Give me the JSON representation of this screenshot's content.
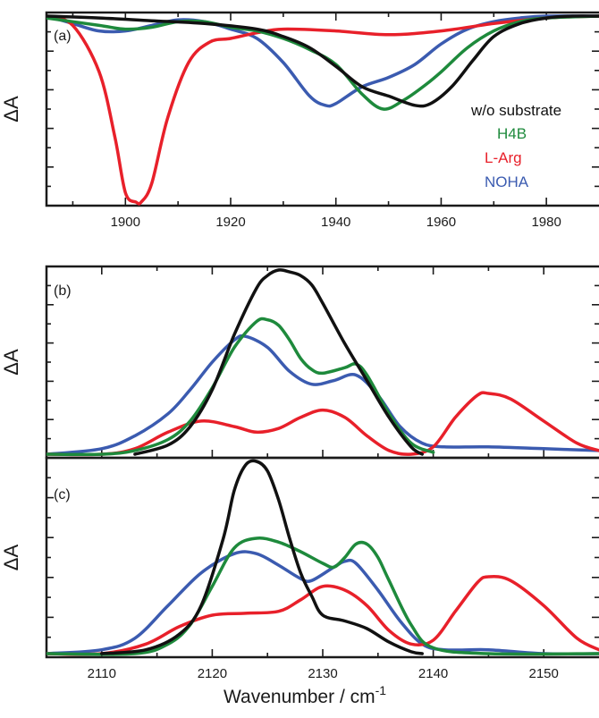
{
  "xlabel": "Wavenumber / cm",
  "xlabel_sup": "-1",
  "legend": [
    {
      "text": "w/o substrate",
      "color": "#111111"
    },
    {
      "text": "H4B",
      "color": "#1e8a3c"
    },
    {
      "text": "L-Arg",
      "color": "#e8202a"
    },
    {
      "text": "NOHA",
      "color": "#3b5bb0"
    }
  ],
  "chart_data": [
    {
      "type": "line",
      "panel": "(a)",
      "ylabel": "ΔA",
      "xlim": [
        1885,
        1990
      ],
      "ylim": [
        -1.0,
        0.0
      ],
      "xticks": [
        1900,
        1920,
        1940,
        1960,
        1980
      ],
      "grid": false,
      "legend_placement": "right",
      "series": [
        {
          "name": "w/o substrate",
          "color": "#111111",
          "x": [
            1885,
            1895,
            1905,
            1915,
            1925,
            1930,
            1935,
            1940,
            1945,
            1950,
            1955,
            1958,
            1962,
            1966,
            1970,
            1975,
            1980,
            1985,
            1990
          ],
          "y": [
            0,
            -0.01,
            -0.025,
            -0.04,
            -0.07,
            -0.11,
            -0.17,
            -0.27,
            -0.38,
            -0.43,
            -0.48,
            -0.47,
            -0.38,
            -0.24,
            -0.11,
            -0.04,
            -0.01,
            0,
            0
          ]
        },
        {
          "name": "H4B",
          "color": "#1e8a3c",
          "x": [
            1885,
            1895,
            1900,
            1905,
            1910,
            1915,
            1920,
            1925,
            1930,
            1935,
            1940,
            1945,
            1949,
            1953,
            1957,
            1960,
            1965,
            1970,
            1975,
            1980,
            1990
          ],
          "y": [
            -0.01,
            -0.05,
            -0.07,
            -0.06,
            -0.03,
            -0.03,
            -0.06,
            -0.08,
            -0.12,
            -0.18,
            -0.26,
            -0.42,
            -0.5,
            -0.45,
            -0.37,
            -0.3,
            -0.17,
            -0.08,
            -0.03,
            -0.01,
            0
          ]
        },
        {
          "name": "L-Arg",
          "color": "#e8202a",
          "x": [
            1885,
            1890,
            1895,
            1898,
            1900,
            1902,
            1903,
            1905,
            1908,
            1912,
            1916,
            1920,
            1925,
            1930,
            1940,
            1950,
            1960,
            1970,
            1980,
            1990
          ],
          "y": [
            0,
            -0.05,
            -0.3,
            -0.65,
            -0.95,
            -1.0,
            -1.0,
            -0.9,
            -0.55,
            -0.25,
            -0.14,
            -0.12,
            -0.09,
            -0.07,
            -0.08,
            -0.1,
            -0.08,
            -0.04,
            -0.01,
            0
          ]
        },
        {
          "name": "NOHA",
          "color": "#3b5bb0",
          "x": [
            1885,
            1890,
            1895,
            1900,
            1905,
            1910,
            1915,
            1920,
            1925,
            1930,
            1935,
            1938,
            1940,
            1945,
            1950,
            1955,
            1960,
            1965,
            1970,
            1975,
            1980,
            1990
          ],
          "y": [
            0,
            -0.04,
            -0.08,
            -0.08,
            -0.05,
            -0.02,
            -0.03,
            -0.07,
            -0.12,
            -0.25,
            -0.43,
            -0.48,
            -0.47,
            -0.38,
            -0.33,
            -0.26,
            -0.15,
            -0.07,
            -0.03,
            -0.01,
            0,
            0
          ]
        }
      ]
    },
    {
      "type": "line",
      "panel": "(b)",
      "ylabel": "ΔA",
      "xlim": [
        2105,
        2155
      ],
      "ylim": [
        0,
        1.0
      ],
      "grid": false,
      "series": [
        {
          "name": "w/o substrate",
          "color": "#111111",
          "x": [
            2113,
            2116,
            2118,
            2120,
            2122,
            2124,
            2125,
            2126,
            2127,
            2128,
            2129,
            2130,
            2132,
            2134,
            2136,
            2138,
            2139
          ],
          "y": [
            0,
            0.05,
            0.15,
            0.35,
            0.65,
            0.9,
            0.97,
            1.0,
            0.99,
            0.97,
            0.92,
            0.82,
            0.6,
            0.4,
            0.2,
            0.04,
            0
          ]
        },
        {
          "name": "H4B",
          "color": "#1e8a3c",
          "x": [
            2105,
            2110,
            2113,
            2116,
            2118,
            2120,
            2122,
            2124,
            2125,
            2126,
            2127,
            2128,
            2129,
            2130,
            2132,
            2133,
            2134,
            2136,
            2138,
            2140
          ],
          "y": [
            0,
            0,
            0.02,
            0.08,
            0.18,
            0.36,
            0.58,
            0.72,
            0.73,
            0.7,
            0.62,
            0.52,
            0.46,
            0.44,
            0.47,
            0.49,
            0.43,
            0.22,
            0.06,
            0.01
          ]
        },
        {
          "name": "L-Arg",
          "color": "#e8202a",
          "x": [
            2105,
            2110,
            2113,
            2116,
            2119,
            2122,
            2124,
            2126,
            2128,
            2130,
            2132,
            2134,
            2136,
            2138,
            2140,
            2142,
            2144,
            2145,
            2147,
            2150,
            2153,
            2155
          ],
          "y": [
            0,
            0,
            0.03,
            0.12,
            0.18,
            0.15,
            0.12,
            0.14,
            0.2,
            0.24,
            0.2,
            0.1,
            0.02,
            0,
            0.04,
            0.2,
            0.32,
            0.33,
            0.3,
            0.18,
            0.06,
            0.02
          ]
        },
        {
          "name": "NOHA",
          "color": "#3b5bb0",
          "x": [
            2105,
            2110,
            2113,
            2116,
            2118,
            2120,
            2122,
            2123,
            2125,
            2127,
            2129,
            2131,
            2133,
            2135,
            2137,
            2139,
            2141,
            2145,
            2150,
            2155
          ],
          "y": [
            0,
            0.03,
            0.1,
            0.22,
            0.35,
            0.5,
            0.62,
            0.64,
            0.58,
            0.45,
            0.38,
            0.4,
            0.43,
            0.32,
            0.15,
            0.06,
            0.04,
            0.04,
            0.03,
            0.02
          ]
        }
      ]
    },
    {
      "type": "line",
      "panel": "(c)",
      "ylabel": "ΔA",
      "xlim": [
        2105,
        2155
      ],
      "xticks": [
        2110,
        2120,
        2130,
        2140,
        2150
      ],
      "ylim": [
        0,
        1.0
      ],
      "grid": false,
      "series": [
        {
          "name": "w/o substrate",
          "color": "#111111",
          "x": [
            2110,
            2114,
            2117,
            2119,
            2121,
            2122,
            2123,
            2124,
            2125,
            2126,
            2127,
            2128,
            2129,
            2130,
            2132,
            2134,
            2136,
            2138,
            2139
          ],
          "y": [
            0,
            0.02,
            0.1,
            0.25,
            0.6,
            0.85,
            0.98,
            1.0,
            0.95,
            0.8,
            0.6,
            0.42,
            0.3,
            0.2,
            0.17,
            0.13,
            0.06,
            0.01,
            0
          ]
        },
        {
          "name": "H4B",
          "color": "#1e8a3c",
          "x": [
            2105,
            2113,
            2116,
            2118,
            2120,
            2122,
            2124,
            2126,
            2128,
            2130,
            2131,
            2132,
            2133,
            2134,
            2135,
            2136,
            2138,
            2140,
            2145,
            2155
          ],
          "y": [
            0,
            0,
            0.05,
            0.15,
            0.35,
            0.55,
            0.6,
            0.58,
            0.53,
            0.47,
            0.45,
            0.5,
            0.57,
            0.57,
            0.5,
            0.38,
            0.15,
            0.03,
            0,
            0
          ]
        },
        {
          "name": "L-Arg",
          "color": "#e8202a",
          "x": [
            2105,
            2110,
            2114,
            2117,
            2120,
            2123,
            2126,
            2128,
            2130,
            2132,
            2134,
            2136,
            2138,
            2140,
            2142,
            2144,
            2145,
            2147,
            2150,
            2153,
            2155
          ],
          "y": [
            0,
            0,
            0.05,
            0.14,
            0.2,
            0.21,
            0.22,
            0.28,
            0.35,
            0.33,
            0.25,
            0.12,
            0.05,
            0.07,
            0.22,
            0.37,
            0.4,
            0.38,
            0.25,
            0.08,
            0.02
          ]
        },
        {
          "name": "NOHA",
          "color": "#3b5bb0",
          "x": [
            2105,
            2110,
            2113,
            2116,
            2119,
            2122,
            2124,
            2126,
            2128,
            2129,
            2131,
            2132,
            2133,
            2135,
            2137,
            2139,
            2141,
            2145,
            2150,
            2155
          ],
          "y": [
            0,
            0.02,
            0.08,
            0.25,
            0.42,
            0.52,
            0.52,
            0.46,
            0.39,
            0.38,
            0.45,
            0.48,
            0.47,
            0.33,
            0.17,
            0.05,
            0.02,
            0.02,
            0,
            0
          ]
        }
      ]
    }
  ]
}
